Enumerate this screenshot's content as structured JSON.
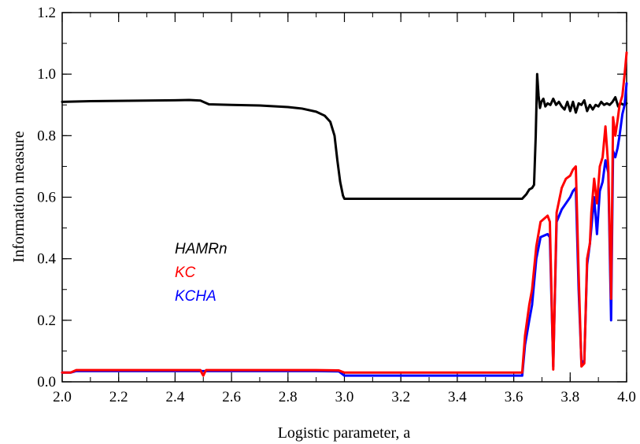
{
  "chart_data": {
    "type": "line",
    "title": "",
    "xlabel": "Logistic parameter, a",
    "ylabel": "Information measure",
    "xlim": [
      2.0,
      4.0
    ],
    "ylim": [
      0.0,
      1.2
    ],
    "x_ticks": [
      "2.0",
      "2.2",
      "2.4",
      "2.6",
      "2.8",
      "3.0",
      "3.2",
      "3.4",
      "3.6",
      "3.8",
      "4.0"
    ],
    "y_ticks": [
      "0.0",
      "0.2",
      "0.4",
      "0.6",
      "0.8",
      "1.0",
      "1.2"
    ],
    "x_minor_step": 0.1,
    "y_minor_step": 0.1,
    "grid": false,
    "legend_placement": "center-left",
    "series": [
      {
        "name": "HAMRn",
        "color": "#000000",
        "points": [
          [
            2.0,
            0.91
          ],
          [
            2.1,
            0.912
          ],
          [
            2.2,
            0.913
          ],
          [
            2.3,
            0.914
          ],
          [
            2.4,
            0.915
          ],
          [
            2.45,
            0.916
          ],
          [
            2.49,
            0.914
          ],
          [
            2.5,
            0.91
          ],
          [
            2.52,
            0.902
          ],
          [
            2.6,
            0.9
          ],
          [
            2.7,
            0.898
          ],
          [
            2.8,
            0.893
          ],
          [
            2.85,
            0.888
          ],
          [
            2.9,
            0.878
          ],
          [
            2.93,
            0.865
          ],
          [
            2.95,
            0.845
          ],
          [
            2.965,
            0.8
          ],
          [
            2.975,
            0.72
          ],
          [
            2.985,
            0.65
          ],
          [
            2.995,
            0.605
          ],
          [
            3.0,
            0.595
          ],
          [
            3.2,
            0.595
          ],
          [
            3.4,
            0.595
          ],
          [
            3.6,
            0.595
          ],
          [
            3.63,
            0.595
          ],
          [
            3.645,
            0.61
          ],
          [
            3.655,
            0.625
          ],
          [
            3.665,
            0.63
          ],
          [
            3.672,
            0.64
          ],
          [
            3.678,
            0.8
          ],
          [
            3.683,
            1.0
          ],
          [
            3.688,
            0.93
          ],
          [
            3.693,
            0.89
          ],
          [
            3.698,
            0.91
          ],
          [
            3.705,
            0.92
          ],
          [
            3.712,
            0.895
          ],
          [
            3.72,
            0.905
          ],
          [
            3.73,
            0.9
          ],
          [
            3.74,
            0.92
          ],
          [
            3.75,
            0.9
          ],
          [
            3.76,
            0.91
          ],
          [
            3.77,
            0.895
          ],
          [
            3.78,
            0.885
          ],
          [
            3.79,
            0.91
          ],
          [
            3.8,
            0.88
          ],
          [
            3.81,
            0.91
          ],
          [
            3.82,
            0.875
          ],
          [
            3.83,
            0.905
          ],
          [
            3.84,
            0.9
          ],
          [
            3.85,
            0.915
          ],
          [
            3.86,
            0.88
          ],
          [
            3.87,
            0.9
          ],
          [
            3.88,
            0.885
          ],
          [
            3.89,
            0.9
          ],
          [
            3.9,
            0.895
          ],
          [
            3.91,
            0.91
          ],
          [
            3.92,
            0.9
          ],
          [
            3.93,
            0.905
          ],
          [
            3.94,
            0.9
          ],
          [
            3.95,
            0.91
          ],
          [
            3.96,
            0.925
          ],
          [
            3.97,
            0.895
          ],
          [
            3.98,
            0.905
          ],
          [
            3.99,
            0.9
          ],
          [
            4.0,
            0.905
          ]
        ]
      },
      {
        "name": "KC",
        "color": "#ff0000",
        "points": [
          [
            2.0,
            0.03
          ],
          [
            2.03,
            0.03
          ],
          [
            2.05,
            0.038
          ],
          [
            2.2,
            0.038
          ],
          [
            2.4,
            0.038
          ],
          [
            2.49,
            0.038
          ],
          [
            2.495,
            0.028
          ],
          [
            2.5,
            0.02
          ],
          [
            2.505,
            0.03
          ],
          [
            2.51,
            0.038
          ],
          [
            2.7,
            0.038
          ],
          [
            2.9,
            0.038
          ],
          [
            2.98,
            0.037
          ],
          [
            3.0,
            0.03
          ],
          [
            3.2,
            0.03
          ],
          [
            3.4,
            0.03
          ],
          [
            3.6,
            0.03
          ],
          [
            3.63,
            0.03
          ],
          [
            3.64,
            0.15
          ],
          [
            3.655,
            0.25
          ],
          [
            3.665,
            0.3
          ],
          [
            3.68,
            0.44
          ],
          [
            3.695,
            0.52
          ],
          [
            3.72,
            0.54
          ],
          [
            3.728,
            0.52
          ],
          [
            3.74,
            0.04
          ],
          [
            3.752,
            0.55
          ],
          [
            3.77,
            0.63
          ],
          [
            3.785,
            0.66
          ],
          [
            3.8,
            0.67
          ],
          [
            3.81,
            0.69
          ],
          [
            3.82,
            0.7
          ],
          [
            3.83,
            0.35
          ],
          [
            3.84,
            0.05
          ],
          [
            3.85,
            0.06
          ],
          [
            3.86,
            0.4
          ],
          [
            3.87,
            0.45
          ],
          [
            3.875,
            0.55
          ],
          [
            3.885,
            0.66
          ],
          [
            3.895,
            0.58
          ],
          [
            3.905,
            0.7
          ],
          [
            3.915,
            0.73
          ],
          [
            3.925,
            0.83
          ],
          [
            3.935,
            0.7
          ],
          [
            3.945,
            0.27
          ],
          [
            3.952,
            0.86
          ],
          [
            3.96,
            0.8
          ],
          [
            3.968,
            0.85
          ],
          [
            3.975,
            0.9
          ],
          [
            3.985,
            0.93
          ],
          [
            3.993,
            1.0
          ],
          [
            4.0,
            1.07
          ]
        ]
      },
      {
        "name": "KCHA",
        "color": "#0000ff",
        "points": [
          [
            2.0,
            0.03
          ],
          [
            2.03,
            0.03
          ],
          [
            2.05,
            0.035
          ],
          [
            2.2,
            0.035
          ],
          [
            2.4,
            0.035
          ],
          [
            2.5,
            0.035
          ],
          [
            2.7,
            0.035
          ],
          [
            2.9,
            0.035
          ],
          [
            2.98,
            0.034
          ],
          [
            3.0,
            0.02
          ],
          [
            3.2,
            0.02
          ],
          [
            3.4,
            0.02
          ],
          [
            3.6,
            0.02
          ],
          [
            3.63,
            0.02
          ],
          [
            3.64,
            0.12
          ],
          [
            3.655,
            0.2
          ],
          [
            3.665,
            0.25
          ],
          [
            3.68,
            0.4
          ],
          [
            3.695,
            0.47
          ],
          [
            3.72,
            0.48
          ],
          [
            3.728,
            0.47
          ],
          [
            3.74,
            0.05
          ],
          [
            3.752,
            0.52
          ],
          [
            3.77,
            0.56
          ],
          [
            3.785,
            0.58
          ],
          [
            3.8,
            0.6
          ],
          [
            3.81,
            0.62
          ],
          [
            3.82,
            0.63
          ],
          [
            3.83,
            0.3
          ],
          [
            3.84,
            0.06
          ],
          [
            3.85,
            0.07
          ],
          [
            3.86,
            0.38
          ],
          [
            3.87,
            0.45
          ],
          [
            3.875,
            0.5
          ],
          [
            3.885,
            0.6
          ],
          [
            3.895,
            0.48
          ],
          [
            3.905,
            0.62
          ],
          [
            3.915,
            0.65
          ],
          [
            3.925,
            0.72
          ],
          [
            3.935,
            0.68
          ],
          [
            3.945,
            0.2
          ],
          [
            3.952,
            0.75
          ],
          [
            3.96,
            0.73
          ],
          [
            3.968,
            0.76
          ],
          [
            3.975,
            0.8
          ],
          [
            3.985,
            0.87
          ],
          [
            3.993,
            0.9
          ],
          [
            4.0,
            0.97
          ]
        ]
      }
    ]
  }
}
